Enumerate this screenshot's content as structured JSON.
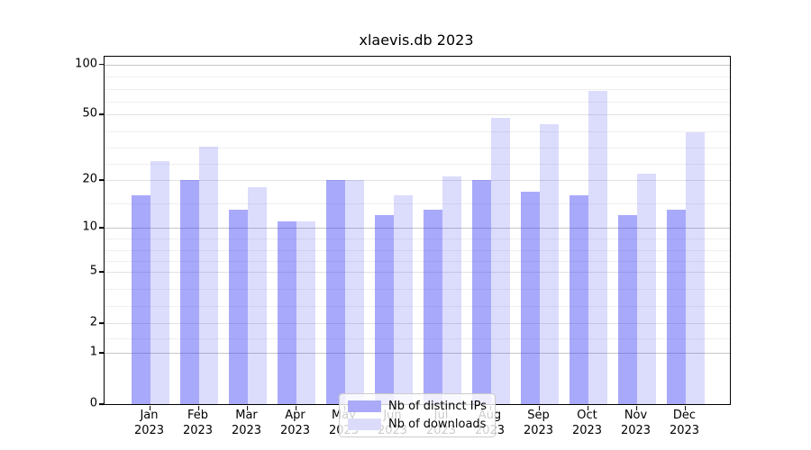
{
  "chart_data": {
    "type": "bar",
    "title": "xlaevis.db 2023",
    "months": [
      "Jan",
      "Feb",
      "Mar",
      "Apr",
      "May",
      "Jun",
      "Jul",
      "Aug",
      "Sep",
      "Oct",
      "Nov",
      "Dec"
    ],
    "year": "2023",
    "categories": [
      "Jan 2023",
      "Feb 2023",
      "Mar 2023",
      "Apr 2023",
      "May 2023",
      "Jun 2023",
      "Jul 2023",
      "Aug 2023",
      "Sep 2023",
      "Oct 2023",
      "Nov 2023",
      "Dec 2023"
    ],
    "series": [
      {
        "name": "Nb of distinct IPs",
        "color": "rgba(60,60,245,0.44)",
        "swatch": "#aaaaf8",
        "values": [
          16,
          20,
          13,
          11,
          20,
          12,
          13,
          20,
          17,
          16,
          12,
          13
        ]
      },
      {
        "name": "Nb of downloads",
        "color": "rgba(60,60,245,0.18)",
        "swatch": "#dcdcfa",
        "values": [
          26,
          32,
          18,
          11,
          20,
          16,
          21,
          48,
          44,
          69,
          22,
          39
        ]
      }
    ],
    "xlabel": "",
    "ylabel": "",
    "yscale": "symlog-log10(1+v)",
    "ylim": [
      0,
      110
    ],
    "y_tick_labels": [
      "100",
      "50",
      "20",
      "10",
      "5",
      "2",
      "1",
      "0"
    ],
    "y_tick_values": [
      100,
      50,
      20,
      10,
      5,
      2,
      1,
      0
    ],
    "decade_tick_values": [
      1,
      10,
      100
    ],
    "minor_grid_segments": [
      [
        1,
        2,
        1
      ],
      [
        2,
        5,
        2
      ],
      [
        5,
        10,
        3
      ],
      [
        10,
        20,
        1
      ],
      [
        20,
        50,
        3
      ],
      [
        50,
        100,
        3
      ]
    ],
    "grid": true,
    "legend_position": "lower center"
  },
  "legend": {
    "items": [
      {
        "label": "Nb of distinct IPs"
      },
      {
        "label": "Nb of downloads"
      }
    ]
  },
  "colors": {
    "grid_major": "#c6c6c6",
    "grid_mid": "#e2e2e2",
    "grid_minor": "#efefef",
    "spine": "#000000"
  }
}
